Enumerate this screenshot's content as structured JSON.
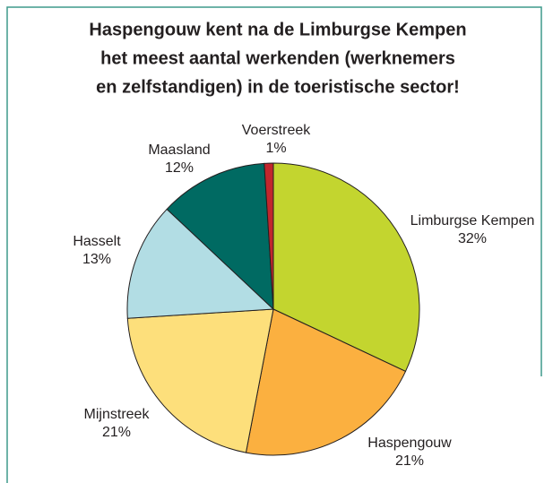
{
  "chart_data": {
    "type": "pie",
    "title": [
      "Haspengouw kent na de Limburgse Kempen",
      "het meest aantal werkenden (werknemers",
      "en zelfstandigen) in de toeristische sector!"
    ],
    "categories": [
      "Limburgse Kempen",
      "Haspengouw",
      "Mijnstreek",
      "Hasselt",
      "Maasland",
      "Voerstreek"
    ],
    "values": [
      32,
      21,
      21,
      13,
      12,
      1
    ],
    "value_labels": [
      "32%",
      "21%",
      "21%",
      "13%",
      "12%",
      "1%"
    ],
    "colors": [
      "#c3d52f",
      "#fbb040",
      "#fddf7b",
      "#b2dde4",
      "#006a62",
      "#c1272d"
    ]
  }
}
